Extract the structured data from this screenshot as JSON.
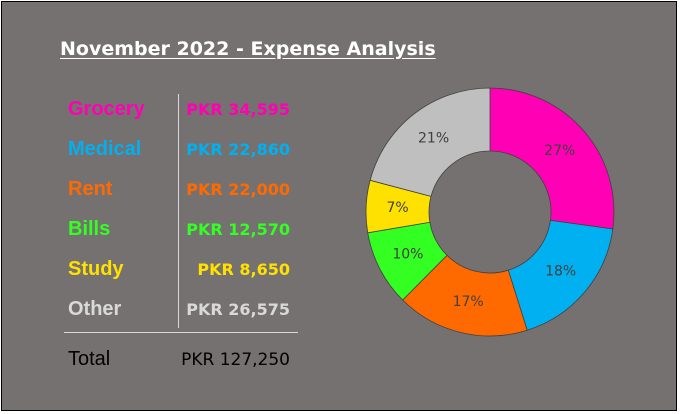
{
  "title": "November 2022 - Expense Analysis",
  "expenses": [
    {
      "label": "Grocery",
      "value": "PKR 34,595",
      "color": "#ff00b4"
    },
    {
      "label": "Medical",
      "value": "PKR 22,860",
      "color": "#00b0f0"
    },
    {
      "label": "Rent",
      "value": "PKR 22,000",
      "color": "#ff6a00"
    },
    {
      "label": "Bills",
      "value": "PKR 12,570",
      "color": "#33ff22"
    },
    {
      "label": "Study",
      "value": "PKR 8,650",
      "color": "#ffe100"
    },
    {
      "label": "Other",
      "value": "PKR 26,575",
      "color": "#d9d9d9"
    }
  ],
  "total": {
    "label": "Total",
    "value": "PKR 127,250"
  },
  "chart_data": {
    "type": "pie",
    "style": "donut",
    "categories": [
      "Grocery",
      "Medical",
      "Rent",
      "Bills",
      "Study",
      "Other"
    ],
    "values": [
      34595,
      22860,
      22000,
      12570,
      8650,
      26575
    ],
    "labels": [
      "27%",
      "18%",
      "17%",
      "10%",
      "7%",
      "21%"
    ],
    "colors": [
      "#ff00b4",
      "#00b0f0",
      "#ff6a00",
      "#33ff22",
      "#ffe100",
      "#bfbfbf"
    ],
    "start_angle_deg": 0,
    "direction": "clockwise",
    "legend": "none"
  }
}
